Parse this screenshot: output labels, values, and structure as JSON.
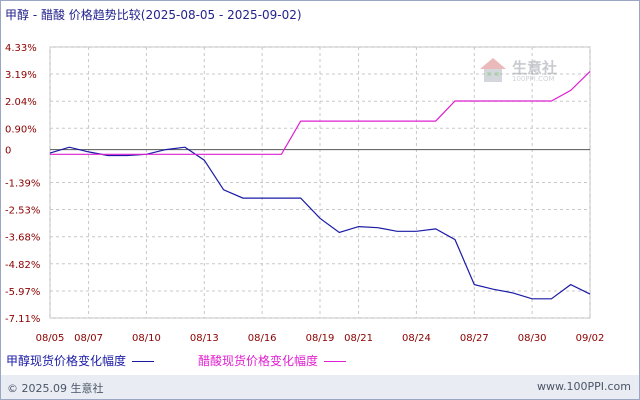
{
  "header": {
    "title": "甲醇 - 醋酸 价格趋势比较(2025-08-05 - 2025-09-02)"
  },
  "watermark": {
    "logo_text": "生意社",
    "logo_sub": "100PPI.COM",
    "icon": "house-logo-icon"
  },
  "footer": {
    "copyright": "© 2025.09 生意社",
    "url": "www.100PPI.com"
  },
  "colors": {
    "methanol": "#1a1aa6",
    "acetic": "#e020d0",
    "grid": "#c8c8c8",
    "axis_text": "#8b0000",
    "zero_line": "#555555"
  },
  "chart_data": {
    "type": "line",
    "title": "甲醇 - 醋酸 价格趋势比较(2025-08-05 - 2025-09-02)",
    "xlabel": "",
    "ylabel": "",
    "ylim": [
      -7.11,
      4.33
    ],
    "y_ticks": [
      "4.33%",
      "3.19%",
      "2.04%",
      "0.90%",
      "0",
      "-1.39%",
      "-2.53%",
      "-3.68%",
      "-4.82%",
      "-5.97%",
      "-7.11%"
    ],
    "y_tick_values": [
      4.33,
      3.19,
      2.04,
      0.9,
      0,
      -1.39,
      -2.53,
      -3.68,
      -4.82,
      -5.97,
      -7.11
    ],
    "x_ticks": [
      "08/05",
      "08/07",
      "08/10",
      "08/13",
      "08/16",
      "08/19",
      "08/21",
      "08/24",
      "08/27",
      "08/30",
      "09/02"
    ],
    "x": [
      "08/05",
      "08/06",
      "08/07",
      "08/08",
      "08/09",
      "08/10",
      "08/11",
      "08/12",
      "08/13",
      "08/14",
      "08/15",
      "08/16",
      "08/17",
      "08/18",
      "08/19",
      "08/20",
      "08/21",
      "08/22",
      "08/23",
      "08/24",
      "08/25",
      "08/26",
      "08/27",
      "08/28",
      "08/29",
      "08/30",
      "08/31",
      "09/01",
      "09/02"
    ],
    "grid": true,
    "legend_position": "bottom",
    "series": [
      {
        "name": "甲醇现货价格变化幅度",
        "color": "#1a1aa6",
        "values": [
          -0.15,
          0.1,
          -0.1,
          -0.25,
          -0.25,
          -0.2,
          0.0,
          0.1,
          -0.45,
          -1.7,
          -2.05,
          -2.05,
          -2.05,
          -2.05,
          -2.9,
          -3.5,
          -3.25,
          -3.3,
          -3.45,
          -3.45,
          -3.35,
          -3.8,
          -5.7,
          -5.9,
          -6.05,
          -6.3,
          -6.3,
          -5.7,
          -6.1
        ]
      },
      {
        "name": "醋酸现货价格变化幅度",
        "color": "#e020d0",
        "values": [
          -0.2,
          -0.2,
          -0.2,
          -0.2,
          -0.2,
          -0.2,
          -0.2,
          -0.2,
          -0.2,
          -0.2,
          -0.2,
          -0.2,
          -0.2,
          1.2,
          1.2,
          1.2,
          1.2,
          1.2,
          1.2,
          1.2,
          1.2,
          2.05,
          2.05,
          2.05,
          2.05,
          2.05,
          2.05,
          2.5,
          3.3
        ]
      }
    ]
  }
}
